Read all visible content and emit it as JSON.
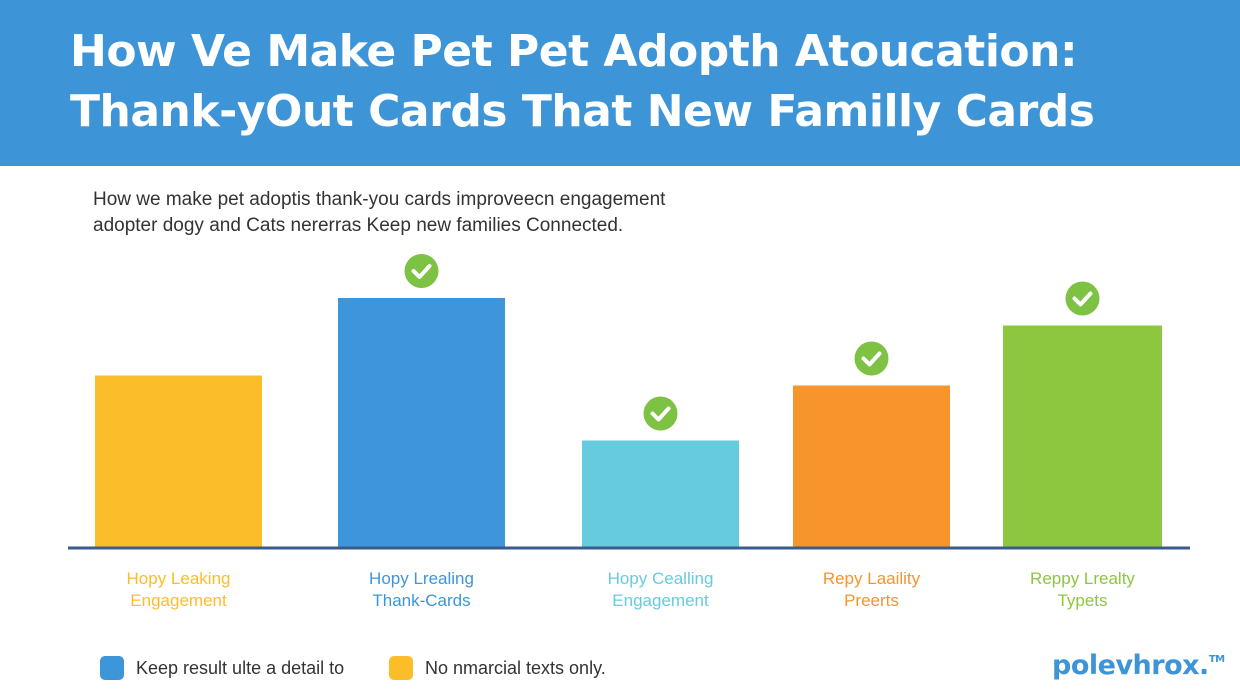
{
  "header": {
    "title_line1": "How Ve Make Pet Pet Adopth Atoucation:",
    "title_line2": "Thank-yOut Cards That New Familly Cards",
    "subtitle_line1": "How we make pet adoptis thank-you cards improveecn engagement",
    "subtitle_line2": "adopter dogy and Cats nererras Keep new families Connected."
  },
  "chart_data": {
    "type": "bar",
    "categories": [
      [
        "Hopy Leaking",
        "Engagement"
      ],
      [
        "Hopy Lrealing",
        "Thank-Cards"
      ],
      [
        "Hopy Cealling",
        "Engagement"
      ],
      [
        "Repy Laaility",
        "Preerts"
      ],
      [
        "Reppy Lrealty",
        "Typets"
      ]
    ],
    "values": [
      69,
      100,
      43,
      65,
      89
    ],
    "ylim": [
      0,
      100
    ],
    "colors": [
      "#fbbd2a",
      "#3d96d9",
      "#67cbe0",
      "#f7942c",
      "#8dc63f"
    ],
    "checkmarks": [
      false,
      true,
      true,
      true,
      true
    ],
    "check_color": "#7dc242",
    "grid": false,
    "legend_placement": "bottom-left"
  },
  "legend": [
    {
      "label": "Keep result ulte a detail to",
      "color": "#3d96d9"
    },
    {
      "label": "No nmarcial texts only.",
      "color": "#fbbd2a"
    }
  ],
  "logo": {
    "text": "polevhrox.",
    "tm": "TM"
  }
}
